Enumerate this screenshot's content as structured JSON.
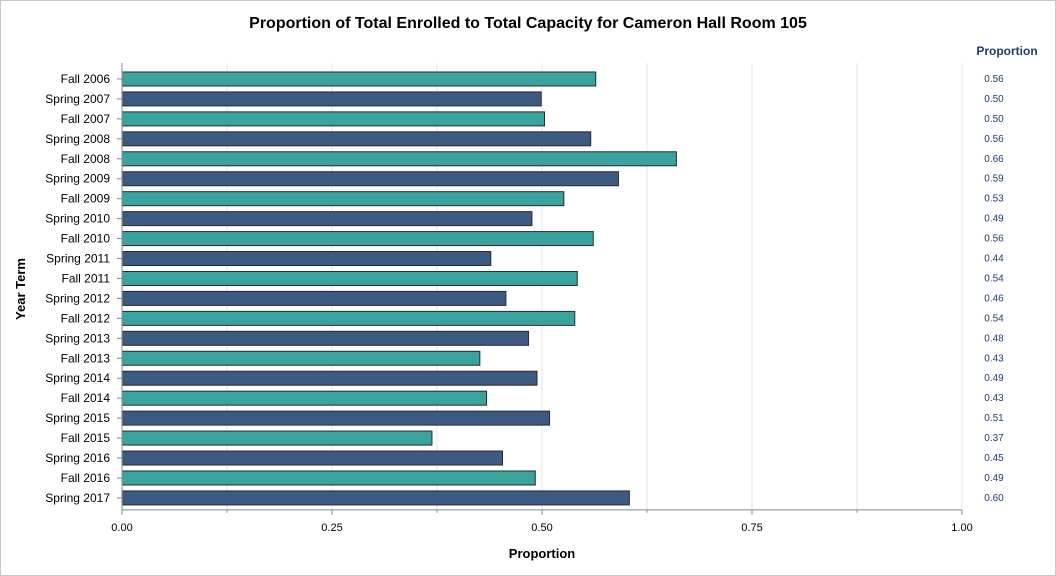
{
  "colors": {
    "teal": "#3aa39e",
    "navy": "#3d5a80",
    "outline": "#2a2a2a",
    "value_text": "#1f3d6b",
    "grid": "#e6e6e6",
    "axis": "#888888"
  },
  "chart_data": {
    "type": "bar",
    "orientation": "horizontal",
    "title": "Proportion of Total Enrolled to Total Capacity for Cameron Hall Room 105",
    "xlabel": "Proportion",
    "ylabel": "Year Term",
    "xlim": [
      0,
      1
    ],
    "x_ticks": [
      "0.00",
      "0.25",
      "0.50",
      "0.75",
      "1.00"
    ],
    "grid": true,
    "value_column_header": "Proportion",
    "categories": [
      "Fall 2006",
      "Spring 2007",
      "Fall 2007",
      "Spring 2008",
      "Fall 2008",
      "Spring 2009",
      "Fall 2009",
      "Spring 2010",
      "Fall 2010",
      "Spring 2011",
      "Fall 2011",
      "Spring 2012",
      "Fall 2012",
      "Spring 2013",
      "Fall 2013",
      "Spring 2014",
      "Fall 2014",
      "Spring 2015",
      "Fall 2015",
      "Spring 2016",
      "Fall 2016",
      "Spring 2017"
    ],
    "values": [
      0.564,
      0.499,
      0.503,
      0.558,
      0.66,
      0.591,
      0.526,
      0.488,
      0.561,
      0.439,
      0.542,
      0.457,
      0.539,
      0.484,
      0.426,
      0.494,
      0.434,
      0.509,
      0.369,
      0.453,
      0.492,
      0.604
    ],
    "value_labels": [
      "0.56",
      "0.50",
      "0.50",
      "0.56",
      "0.66",
      "0.59",
      "0.53",
      "0.49",
      "0.56",
      "0.44",
      "0.54",
      "0.46",
      "0.54",
      "0.48",
      "0.43",
      "0.49",
      "0.43",
      "0.51",
      "0.37",
      "0.45",
      "0.49",
      "0.60"
    ],
    "series_colors": [
      "#3aa39e",
      "#3d5a80"
    ]
  }
}
